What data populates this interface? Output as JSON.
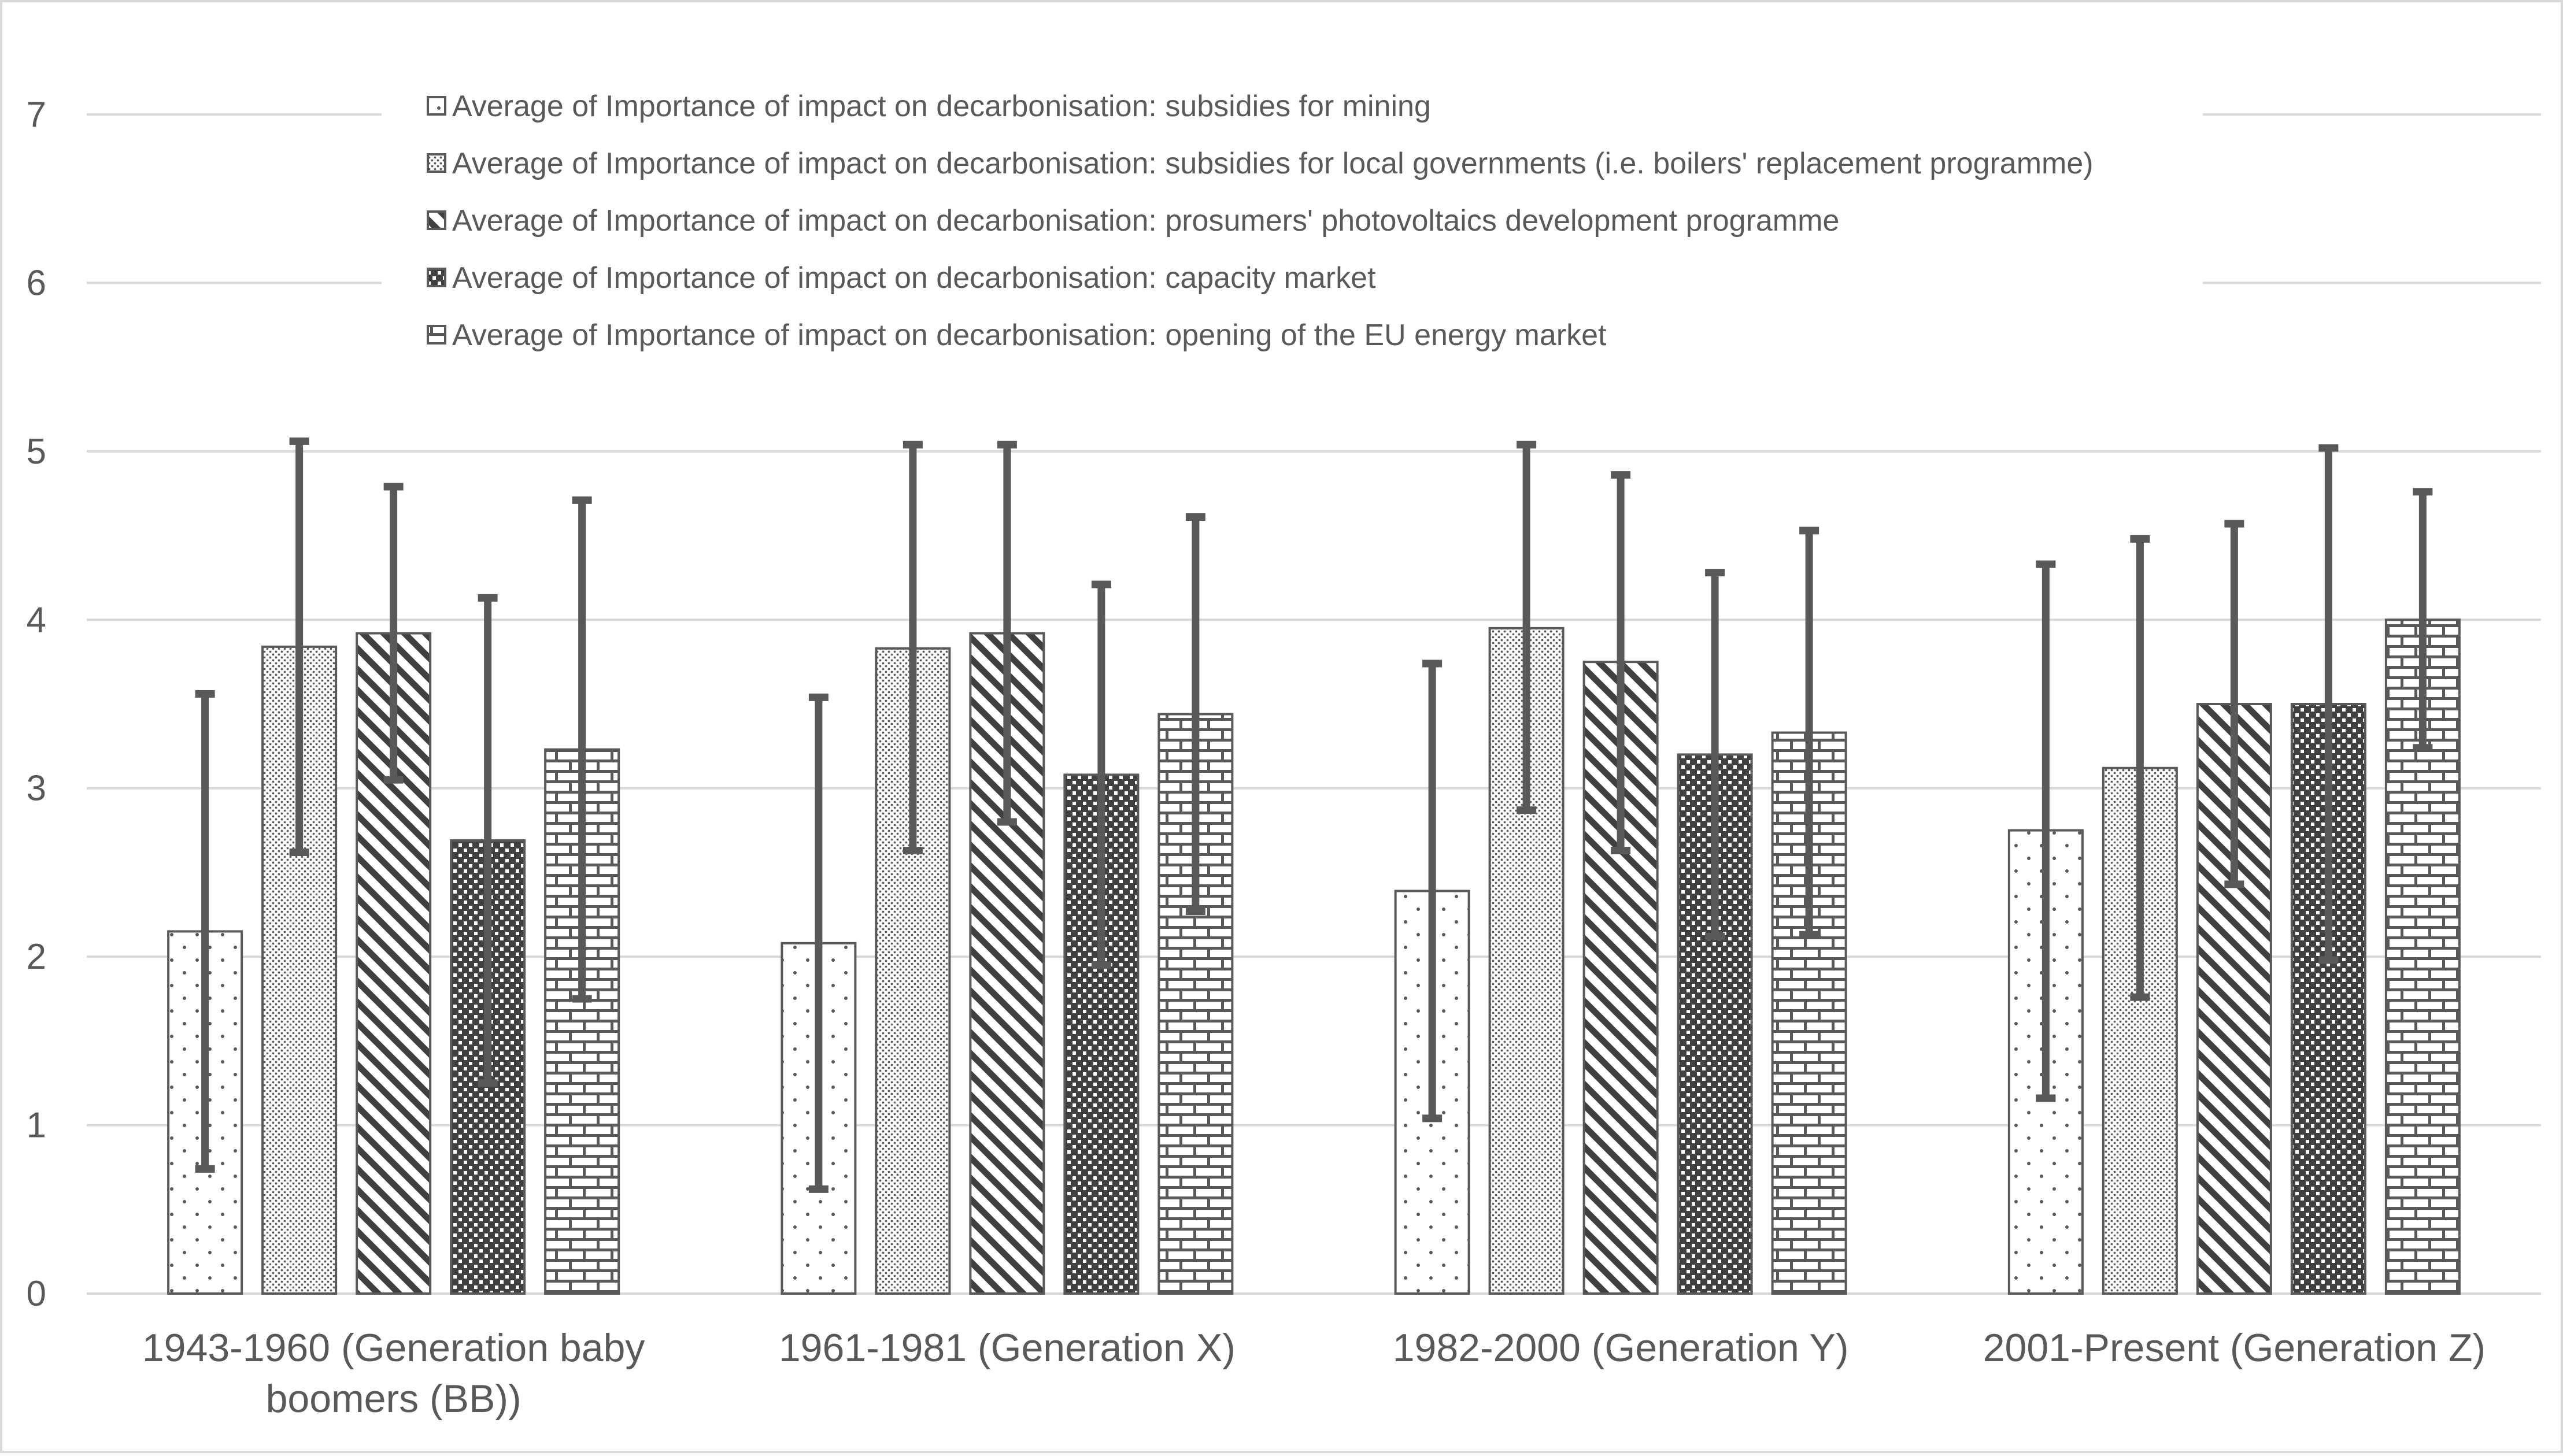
{
  "chart_data": {
    "type": "bar",
    "title": "",
    "xlabel": "",
    "ylabel": "",
    "ylim": [
      0,
      7
    ],
    "yticks": [
      0,
      1,
      2,
      3,
      4,
      5,
      6,
      7
    ],
    "grid": true,
    "legend_position": "top-left",
    "categories": [
      [
        "1943-1960 (Generation baby",
        "boomers (BB))"
      ],
      [
        "1961-1981 (Generation X)"
      ],
      [
        "1982-2000 (Generation Y)"
      ],
      [
        "2001-Present (Generation Z)"
      ]
    ],
    "series": [
      {
        "name": "Average of Importance of impact on decarbonisation: subsidies for mining",
        "pattern": "dots",
        "values": [
          2.15,
          2.08,
          2.39,
          2.75
        ],
        "error_high": [
          3.56,
          3.54,
          3.74,
          4.33
        ],
        "error_low": [
          0.74,
          0.62,
          1.04,
          1.16
        ]
      },
      {
        "name": "Average of Importance of impact on decarbonisation: subsidies for local governments (i.e. boilers' replacement programme)",
        "pattern": "fine-dots",
        "values": [
          3.84,
          3.83,
          3.95,
          3.12
        ],
        "error_high": [
          5.06,
          5.04,
          5.04,
          4.48
        ],
        "error_low": [
          2.62,
          2.63,
          2.87,
          1.76
        ]
      },
      {
        "name": "Average of Importance of impact on decarbonisation: prosumers' photovoltaics development programme",
        "pattern": "diagonal",
        "values": [
          3.92,
          3.92,
          3.75,
          3.5
        ],
        "error_high": [
          4.79,
          5.04,
          4.86,
          4.57
        ],
        "error_low": [
          3.05,
          2.8,
          2.63,
          2.43
        ]
      },
      {
        "name": "Average of Importance of impact on decarbonisation: capacity market",
        "pattern": "checker",
        "values": [
          2.69,
          3.08,
          3.2,
          3.5
        ],
        "error_high": [
          4.13,
          4.21,
          4.28,
          5.02
        ],
        "error_low": [
          1.25,
          1.95,
          2.12,
          1.98
        ]
      },
      {
        "name": "Average of Importance of impact on decarbonisation: opening of the EU energy market",
        "pattern": "brick",
        "values": [
          3.23,
          3.44,
          3.33,
          4.0
        ],
        "error_high": [
          4.71,
          4.61,
          4.53,
          4.76
        ],
        "error_low": [
          1.75,
          2.27,
          2.13,
          3.24
        ]
      }
    ]
  }
}
